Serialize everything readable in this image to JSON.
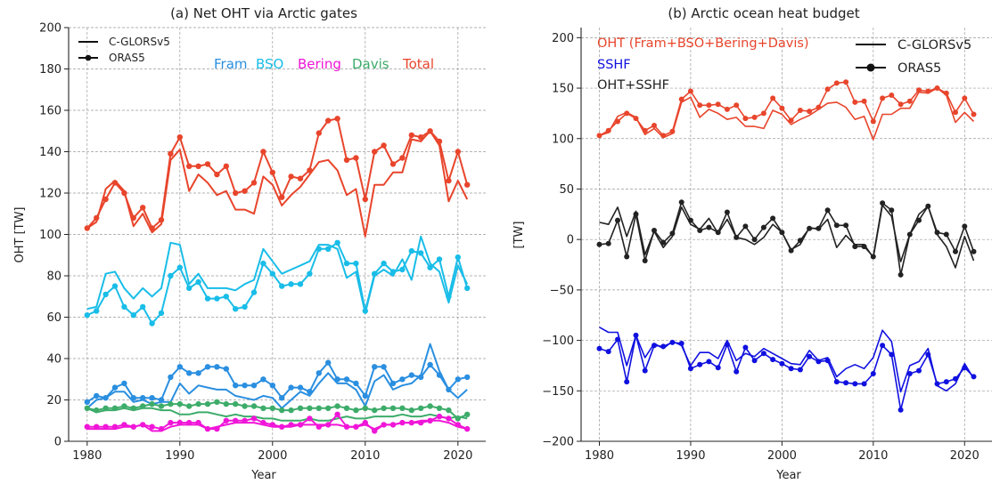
{
  "chart_data": [
    {
      "type": "line",
      "title": "(a) Net OHT via Arctic gates",
      "xlabel": "Year",
      "ylabel": "OHT [TW]",
      "xlim": [
        1978,
        2023
      ],
      "ylim": [
        0,
        200
      ],
      "xticks": [
        "1980",
        "1990",
        "2000",
        "2010",
        "2020"
      ],
      "yticks": [
        "0",
        "20",
        "40",
        "60",
        "80",
        "100",
        "120",
        "140",
        "160",
        "180",
        "200"
      ],
      "grid": true,
      "legend_position": "top-left",
      "style_legend": [
        {
          "label": "C-GLORSv5",
          "marker": false
        },
        {
          "label": "ORAS5",
          "marker": true
        }
      ],
      "color_legend": [
        {
          "label": "Fram",
          "color": "#2a8fe0"
        },
        {
          "label": "BSO",
          "color": "#19bde8"
        },
        {
          "label": "Bering",
          "color": "#f016d8"
        },
        {
          "label": "Davis",
          "color": "#3dac6a"
        },
        {
          "label": "Total",
          "color": "#e8452c"
        }
      ],
      "x": [
        1980,
        1981,
        1982,
        1983,
        1984,
        1985,
        1986,
        1987,
        1988,
        1989,
        1990,
        1991,
        1992,
        1993,
        1994,
        1995,
        1996,
        1997,
        1998,
        1999,
        2000,
        2001,
        2002,
        2003,
        2004,
        2005,
        2006,
        2007,
        2008,
        2009,
        2010,
        2011,
        2012,
        2013,
        2014,
        2015,
        2016,
        2017,
        2018,
        2019,
        2020,
        2021
      ],
      "series": [
        {
          "group": "Total",
          "product": "C-GLORSv5",
          "color": "#e8452c",
          "marker": false,
          "values": [
            103,
            106,
            122,
            126,
            121,
            104,
            110,
            101,
            105,
            136,
            141,
            121,
            129,
            125,
            119,
            121,
            112,
            112,
            110,
            128,
            124,
            114,
            119,
            123,
            129,
            135,
            136,
            131,
            119,
            122,
            99,
            124,
            124,
            130,
            130,
            146,
            145,
            150,
            143,
            116,
            126,
            117
          ]
        },
        {
          "group": "Total",
          "product": "ORAS5",
          "color": "#e8452c",
          "marker": true,
          "values": [
            103,
            108,
            117,
            125,
            120,
            108,
            113,
            103,
            107,
            139,
            147,
            133,
            133,
            134,
            129,
            133,
            120,
            121,
            125,
            140,
            130,
            118,
            128,
            127,
            131,
            149,
            155,
            156,
            136,
            137,
            117,
            140,
            143,
            134,
            137,
            148,
            147,
            150,
            145,
            126,
            140,
            124
          ]
        },
        {
          "group": "BSO",
          "product": "C-GLORSv5",
          "color": "#19bde8",
          "marker": false,
          "values": [
            64,
            65,
            81,
            82,
            74,
            69,
            74,
            70,
            74,
            96,
            95,
            76,
            81,
            74,
            74,
            74,
            73,
            76,
            78,
            93,
            87,
            81,
            83,
            85,
            87,
            95,
            95,
            93,
            79,
            82,
            62,
            80,
            83,
            80,
            88,
            78,
            99,
            86,
            82,
            67,
            85,
            76
          ]
        },
        {
          "group": "BSO",
          "product": "ORAS5",
          "color": "#19bde8",
          "marker": true,
          "values": [
            61,
            63,
            71,
            75,
            65,
            61,
            65,
            57,
            62,
            80,
            84,
            74,
            77,
            69,
            69,
            70,
            64,
            65,
            72,
            86,
            81,
            75,
            76,
            76,
            81,
            93,
            93,
            96,
            86,
            86,
            63,
            81,
            86,
            82,
            83,
            92,
            91,
            84,
            88,
            70,
            89,
            74
          ]
        },
        {
          "group": "Fram",
          "product": "C-GLORSv5",
          "color": "#2a8fe0",
          "marker": false,
          "values": [
            16,
            20,
            21,
            24,
            24,
            19,
            20,
            18,
            19,
            19,
            28,
            23,
            27,
            26,
            25,
            25,
            22,
            21,
            20,
            22,
            21,
            16,
            20,
            24,
            22,
            28,
            33,
            28,
            28,
            25,
            17,
            29,
            32,
            25,
            27,
            28,
            32,
            47,
            34,
            25,
            21,
            25
          ]
        },
        {
          "group": "Fram",
          "product": "ORAS5",
          "color": "#2a8fe0",
          "marker": true,
          "values": [
            19,
            22,
            21,
            26,
            28,
            21,
            21,
            21,
            20,
            31,
            36,
            33,
            33,
            36,
            36,
            35,
            27,
            27,
            27,
            30,
            27,
            21,
            26,
            26,
            24,
            33,
            38,
            30,
            30,
            28,
            22,
            36,
            36,
            28,
            30,
            32,
            31,
            37,
            32,
            25,
            30,
            31
          ]
        },
        {
          "group": "Davis",
          "product": "C-GLORSv5",
          "color": "#3dac6a",
          "marker": false,
          "values": [
            16,
            14,
            15,
            15,
            16,
            15,
            16,
            16,
            15,
            15,
            13,
            13,
            14,
            14,
            13,
            12,
            13,
            12,
            12,
            11,
            11,
            10,
            10,
            10,
            11,
            10,
            10,
            11,
            12,
            11,
            11,
            12,
            12,
            12,
            13,
            12,
            12,
            13,
            12,
            11,
            12,
            11
          ]
        },
        {
          "group": "Davis",
          "product": "ORAS5",
          "color": "#3dac6a",
          "marker": true,
          "values": [
            16,
            15,
            16,
            16,
            17,
            16,
            17,
            18,
            17,
            18,
            18,
            17,
            18,
            18,
            19,
            18,
            18,
            17,
            17,
            16,
            16,
            15,
            15,
            16,
            16,
            16,
            16,
            17,
            16,
            15,
            16,
            15,
            16,
            16,
            16,
            15,
            16,
            17,
            16,
            15,
            11,
            13
          ]
        },
        {
          "group": "Bering",
          "product": "C-GLORSv5",
          "color": "#f016d8",
          "marker": false,
          "values": [
            6,
            6,
            6,
            6,
            7,
            7,
            8,
            5,
            5,
            7,
            8,
            8,
            8,
            6,
            7,
            8,
            9,
            9,
            9,
            8,
            7,
            7,
            7,
            8,
            8,
            8,
            8,
            8,
            7,
            7,
            8,
            6,
            8,
            8,
            9,
            9,
            10,
            10,
            10,
            9,
            7,
            6
          ]
        },
        {
          "group": "Bering",
          "product": "ORAS5",
          "color": "#f016d8",
          "marker": true,
          "values": [
            7,
            7,
            7,
            7,
            8,
            7,
            8,
            7,
            6,
            9,
            9,
            9,
            9,
            6,
            6,
            10,
            10,
            10,
            11,
            9,
            8,
            7,
            8,
            8,
            11,
            7,
            8,
            13,
            7,
            7,
            9,
            5,
            8,
            8,
            9,
            9,
            9,
            10,
            12,
            11,
            8,
            6
          ]
        }
      ]
    },
    {
      "type": "line",
      "title": "(b) Arctic ocean heat budget",
      "xlabel": "Year",
      "ylabel": "[TW]",
      "xlim": [
        1978,
        2023
      ],
      "ylim": [
        -200,
        210
      ],
      "xticks": [
        "1980",
        "1990",
        "2000",
        "2010",
        "2020"
      ],
      "yticks": [
        "−200",
        "−150",
        "−100",
        "−50",
        "0",
        "50",
        "100",
        "150",
        "200"
      ],
      "grid": true,
      "legend_position": "top-right",
      "style_legend": [
        {
          "label": "C-GLORSv5",
          "marker": false
        },
        {
          "label": "ORAS5",
          "marker": true
        }
      ],
      "color_legend": [
        {
          "label": "OHT (Fram+BSO+Bering+Davis)",
          "color": "#e8452c"
        },
        {
          "label": "SSHF",
          "color": "#1010e0"
        },
        {
          "label": "OHT+SSHF",
          "color": "#222222"
        }
      ],
      "x": [
        1980,
        1981,
        1982,
        1983,
        1984,
        1985,
        1986,
        1987,
        1988,
        1989,
        1990,
        1991,
        1992,
        1993,
        1994,
        1995,
        1996,
        1997,
        1998,
        1999,
        2000,
        2001,
        2002,
        2003,
        2004,
        2005,
        2006,
        2007,
        2008,
        2009,
        2010,
        2011,
        2012,
        2013,
        2014,
        2015,
        2016,
        2017,
        2018,
        2019,
        2020,
        2021
      ],
      "series": [
        {
          "group": "OHT",
          "product": "C-GLORSv5",
          "color": "#e8452c",
          "marker": false,
          "values": [
            103,
            106,
            122,
            126,
            121,
            104,
            110,
            101,
            105,
            136,
            141,
            121,
            129,
            125,
            119,
            121,
            112,
            112,
            110,
            128,
            124,
            114,
            119,
            123,
            129,
            135,
            136,
            131,
            119,
            122,
            99,
            124,
            124,
            130,
            130,
            146,
            145,
            150,
            143,
            116,
            126,
            117
          ]
        },
        {
          "group": "OHT",
          "product": "ORAS5",
          "color": "#e8452c",
          "marker": true,
          "values": [
            103,
            108,
            117,
            125,
            120,
            108,
            113,
            103,
            107,
            139,
            147,
            133,
            133,
            134,
            129,
            133,
            120,
            121,
            125,
            140,
            130,
            118,
            128,
            127,
            131,
            149,
            155,
            156,
            136,
            137,
            117,
            140,
            143,
            134,
            137,
            148,
            147,
            150,
            145,
            126,
            140,
            124
          ]
        },
        {
          "group": "SSHF",
          "product": "C-GLORSv5",
          "color": "#1010e0",
          "marker": false,
          "values": [
            -87,
            -92,
            -92,
            -125,
            -95,
            -117,
            -103,
            -108,
            -101,
            -105,
            -125,
            -112,
            -112,
            -118,
            -100,
            -120,
            -113,
            -116,
            -108,
            -113,
            -118,
            -123,
            -124,
            -110,
            -120,
            -117,
            -136,
            -128,
            -124,
            -128,
            -117,
            -90,
            -101,
            -151,
            -125,
            -121,
            -108,
            -145,
            -150,
            -143,
            -123,
            -138
          ]
        },
        {
          "group": "SSHF",
          "product": "ORAS5",
          "color": "#1010e0",
          "marker": true,
          "values": [
            -108,
            -111,
            -99,
            -141,
            -95,
            -130,
            -105,
            -106,
            -102,
            -103,
            -128,
            -124,
            -121,
            -127,
            -104,
            -131,
            -107,
            -120,
            -113,
            -119,
            -123,
            -128,
            -129,
            -116,
            -121,
            -120,
            -141,
            -142,
            -143,
            -143,
            -133,
            -105,
            -114,
            -169,
            -133,
            -130,
            -114,
            -143,
            -141,
            -138,
            -127,
            -136
          ]
        },
        {
          "group": "OHT+SSHF",
          "product": "C-GLORSv5",
          "color": "#222222",
          "marker": false,
          "values": [
            17,
            15,
            32,
            3,
            28,
            -15,
            8,
            -8,
            3,
            32,
            15,
            10,
            21,
            6,
            20,
            2,
            0,
            -5,
            2,
            15,
            7,
            -10,
            -5,
            12,
            10,
            20,
            -8,
            4,
            -5,
            -5,
            -18,
            34,
            23,
            -22,
            5,
            25,
            33,
            5,
            -7,
            -28,
            3,
            -21
          ]
        },
        {
          "group": "OHT+SSHF",
          "product": "ORAS5",
          "color": "#222222",
          "marker": true,
          "values": [
            -5,
            -4,
            19,
            -17,
            25,
            -21,
            9,
            -3,
            6,
            37,
            19,
            9,
            12,
            7,
            27,
            2,
            13,
            0,
            12,
            21,
            7,
            -11,
            -1,
            11,
            11,
            29,
            14,
            14,
            -7,
            -7,
            -17,
            36,
            29,
            -35,
            5,
            19,
            33,
            7,
            5,
            -12,
            13,
            -12
          ]
        }
      ]
    }
  ]
}
